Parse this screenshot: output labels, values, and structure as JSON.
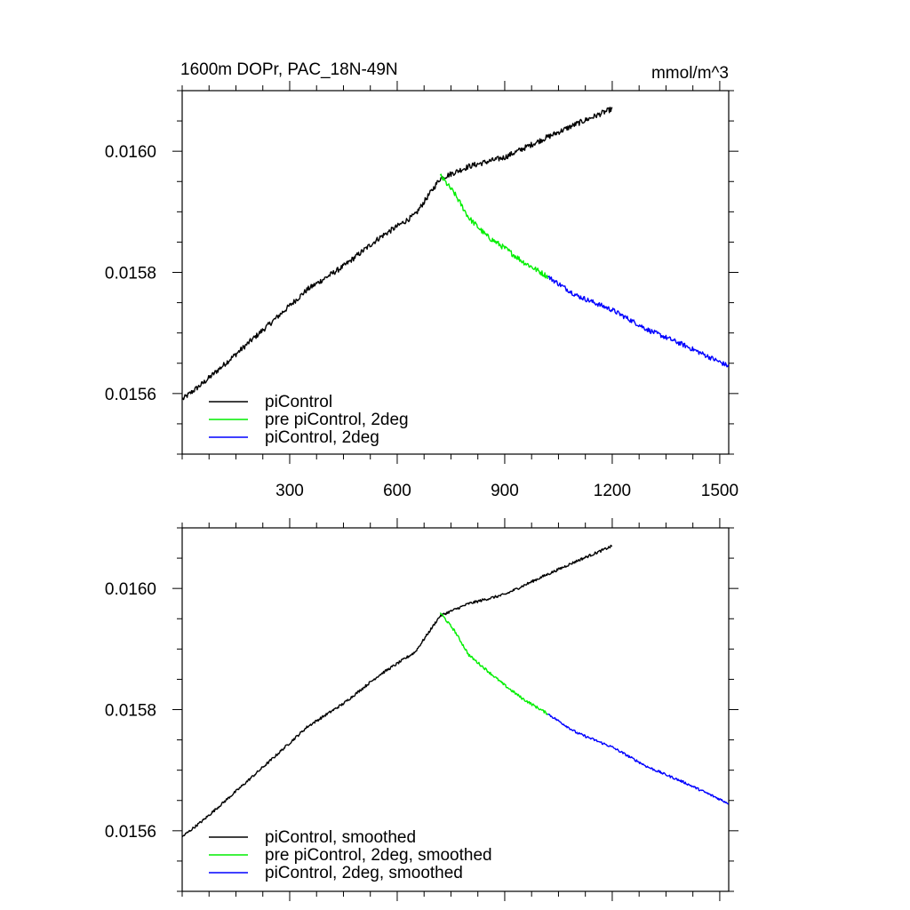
{
  "figure": {
    "title_left": "1600m DOPr, PAC_18N-49N",
    "title_right": "mmol/m^3"
  },
  "chart_data": [
    {
      "type": "line",
      "panel": "top",
      "title": "1600m DOPr, PAC_18N-49N",
      "units": "mmol/m^3",
      "xlim": [
        0,
        1525
      ],
      "ylim": [
        0.0155,
        0.0161
      ],
      "xticks": [
        300,
        600,
        900,
        1200,
        1500
      ],
      "xtick_labels": [
        "300",
        "600",
        "900",
        "1200",
        "1500"
      ],
      "yticks": [
        0.0156,
        0.0158,
        0.016
      ],
      "ytick_labels": [
        "0.0156",
        "0.0158",
        "0.0160"
      ],
      "legend_position": "bottom-left",
      "series": [
        {
          "name": "piControl",
          "color": "#000000",
          "noise": 4.5e-06,
          "points": [
            [
              0,
              0.01559
            ],
            [
              60,
              0.015618
            ],
            [
              150,
              0.015665
            ],
            [
              250,
              0.015718
            ],
            [
              350,
              0.015772
            ],
            [
              450,
              0.01581
            ],
            [
              550,
              0.015857
            ],
            [
              650,
              0.015895
            ],
            [
              720,
              0.015955
            ],
            [
              800,
              0.015975
            ],
            [
              900,
              0.01599
            ],
            [
              1000,
              0.016018
            ],
            [
              1100,
              0.016045
            ],
            [
              1200,
              0.01607
            ]
          ]
        },
        {
          "name": "pre piControl, 2deg",
          "color": "#00ee00",
          "noise": 4.5e-06,
          "points": [
            [
              720,
              0.01596
            ],
            [
              760,
              0.01593
            ],
            [
              800,
              0.01589
            ],
            [
              850,
              0.01586
            ],
            [
              900,
              0.01584
            ],
            [
              950,
              0.015818
            ],
            [
              1020,
              0.015793
            ]
          ]
        },
        {
          "name": "piControl, 2deg",
          "color": "#0000ff",
          "noise": 4e-06,
          "points": [
            [
              1020,
              0.015793
            ],
            [
              1100,
              0.015762
            ],
            [
              1200,
              0.015738
            ],
            [
              1300,
              0.015705
            ],
            [
              1400,
              0.01568
            ],
            [
              1525,
              0.015645
            ]
          ]
        }
      ]
    },
    {
      "type": "line",
      "panel": "bottom",
      "xlim": [
        0,
        1525
      ],
      "ylim": [
        0.0155,
        0.0161
      ],
      "xticks": [
        300,
        600,
        900,
        1200,
        1500
      ],
      "yticks": [
        0.0156,
        0.0158,
        0.016
      ],
      "ytick_labels": [
        "0.0156",
        "0.0158",
        "0.0160"
      ],
      "legend_position": "bottom-left",
      "series": [
        {
          "name": "piControl, smoothed",
          "color": "#000000",
          "noise": 2.2e-06,
          "points": [
            [
              0,
              0.01559
            ],
            [
              60,
              0.015618
            ],
            [
              150,
              0.015665
            ],
            [
              250,
              0.015718
            ],
            [
              350,
              0.015772
            ],
            [
              450,
              0.01581
            ],
            [
              550,
              0.015857
            ],
            [
              650,
              0.015895
            ],
            [
              720,
              0.015955
            ],
            [
              800,
              0.015975
            ],
            [
              900,
              0.01599
            ],
            [
              1000,
              0.016018
            ],
            [
              1100,
              0.016045
            ],
            [
              1200,
              0.01607
            ]
          ]
        },
        {
          "name": "pre piControl, 2deg, smoothed",
          "color": "#00ee00",
          "noise": 2.2e-06,
          "points": [
            [
              720,
              0.01596
            ],
            [
              760,
              0.01593
            ],
            [
              800,
              0.01589
            ],
            [
              850,
              0.015865
            ],
            [
              900,
              0.01584
            ],
            [
              950,
              0.015818
            ],
            [
              1020,
              0.015793
            ]
          ]
        },
        {
          "name": "piControl, 2deg, smoothed",
          "color": "#0000ff",
          "noise": 2e-06,
          "points": [
            [
              1020,
              0.015793
            ],
            [
              1100,
              0.015762
            ],
            [
              1200,
              0.015738
            ],
            [
              1300,
              0.015705
            ],
            [
              1400,
              0.01568
            ],
            [
              1525,
              0.015645
            ]
          ]
        }
      ]
    }
  ]
}
